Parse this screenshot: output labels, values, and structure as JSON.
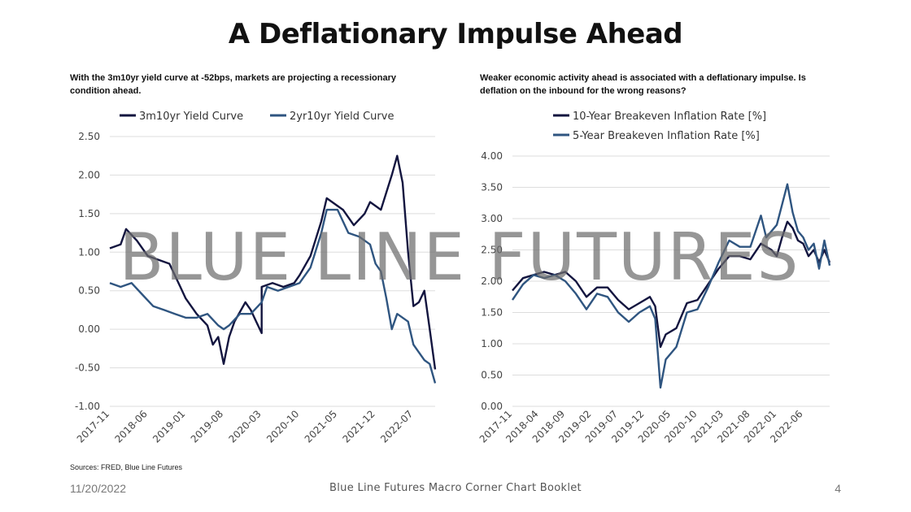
{
  "page": {
    "title": "A Deflationary Impulse Ahead",
    "footer_date": "11/20/2022",
    "footer_center": "Blue Line Futures Macro Corner Chart Booklet",
    "page_number": "4",
    "watermark": "BLUE LINE FUTURES",
    "sources": "Sources: FRED, Blue Line Futures"
  },
  "colors": {
    "dark_navy": "#13153f",
    "steel_blue": "#2f5580",
    "grid": "#dddddd"
  },
  "chart_data": [
    {
      "type": "line",
      "subtitle": "With the 3m10yr yield curve at -52bps, markets are projecting a recessionary condition ahead.",
      "ylim": [
        -1.0,
        2.5
      ],
      "yticks": [
        "2.50",
        "2.00",
        "1.50",
        "1.00",
        "0.50",
        "0.00",
        "-0.50",
        "-1.00"
      ],
      "ytick_values": [
        2.5,
        2.0,
        1.5,
        1.0,
        0.5,
        0.0,
        -0.5,
        -1.0
      ],
      "x_start": "2017-11",
      "x_end": "2022-11",
      "xticks": [
        "2017-11",
        "2018-06",
        "2019-01",
        "2019-08",
        "2020-03",
        "2020-10",
        "2021-05",
        "2021-12",
        "2022-07"
      ],
      "legend": "top",
      "grid": true,
      "series": [
        {
          "name": "3m10yr Yield Curve",
          "color": "#13153f",
          "x": [
            "2017-11",
            "2018-01",
            "2018-02",
            "2018-04",
            "2018-06",
            "2018-08",
            "2018-10",
            "2018-12",
            "2019-01",
            "2019-03",
            "2019-05",
            "2019-06",
            "2019-07",
            "2019-08",
            "2019-09",
            "2019-10",
            "2019-12",
            "2020-01",
            "2020-02",
            "2020-03",
            "2020-03",
            "2020-05",
            "2020-07",
            "2020-09",
            "2020-10",
            "2020-12",
            "2021-02",
            "2021-03",
            "2021-05",
            "2021-06",
            "2021-08",
            "2021-10",
            "2021-11",
            "2021-12",
            "2022-01",
            "2022-03",
            "2022-04",
            "2022-05",
            "2022-06",
            "2022-07",
            "2022-08",
            "2022-09",
            "2022-10",
            "2022-11"
          ],
          "values": [
            1.05,
            1.1,
            1.3,
            1.15,
            0.95,
            0.9,
            0.85,
            0.55,
            0.4,
            0.2,
            0.05,
            -0.2,
            -0.1,
            -0.45,
            -0.1,
            0.1,
            0.35,
            0.25,
            0.1,
            -0.05,
            0.55,
            0.6,
            0.55,
            0.6,
            0.7,
            0.95,
            1.4,
            1.7,
            1.6,
            1.55,
            1.35,
            1.5,
            1.65,
            1.6,
            1.55,
            2.0,
            2.25,
            1.9,
            1.0,
            0.3,
            0.35,
            0.5,
            0.0,
            -0.52
          ]
        },
        {
          "name": "2yr10yr Yield Curve",
          "color": "#2f5580",
          "x": [
            "2017-11",
            "2018-01",
            "2018-03",
            "2018-05",
            "2018-07",
            "2018-09",
            "2018-11",
            "2019-01",
            "2019-03",
            "2019-05",
            "2019-07",
            "2019-08",
            "2019-09",
            "2019-11",
            "2020-01",
            "2020-03",
            "2020-04",
            "2020-06",
            "2020-08",
            "2020-10",
            "2020-12",
            "2021-02",
            "2021-03",
            "2021-05",
            "2021-07",
            "2021-09",
            "2021-11",
            "2021-12",
            "2022-01",
            "2022-02",
            "2022-03",
            "2022-04",
            "2022-06",
            "2022-07",
            "2022-08",
            "2022-09",
            "2022-10",
            "2022-11"
          ],
          "values": [
            0.6,
            0.55,
            0.6,
            0.45,
            0.3,
            0.25,
            0.2,
            0.15,
            0.15,
            0.2,
            0.05,
            0.0,
            0.05,
            0.2,
            0.2,
            0.35,
            0.55,
            0.5,
            0.55,
            0.6,
            0.8,
            1.25,
            1.55,
            1.55,
            1.25,
            1.2,
            1.1,
            0.85,
            0.75,
            0.4,
            0.0,
            0.2,
            0.1,
            -0.2,
            -0.3,
            -0.4,
            -0.45,
            -0.7
          ]
        }
      ]
    },
    {
      "type": "line",
      "subtitle": "Weaker economic activity ahead is associated with a deflationary impulse. Is deflation on the inbound for the wrong reasons?",
      "ylim": [
        0.0,
        4.0
      ],
      "yticks": [
        "4.00",
        "3.50",
        "3.00",
        "2.50",
        "2.00",
        "1.50",
        "1.00",
        "0.50",
        "0.00"
      ],
      "ytick_values": [
        4.0,
        3.5,
        3.0,
        2.5,
        2.0,
        1.5,
        1.0,
        0.5,
        0.0
      ],
      "x_start": "2017-11",
      "x_end": "2022-11",
      "xticks": [
        "2017-11",
        "2018-04",
        "2018-09",
        "2019-02",
        "2019-07",
        "2019-12",
        "2020-05",
        "2020-10",
        "2021-03",
        "2021-08",
        "2022-01",
        "2022-06"
      ],
      "legend": "top",
      "grid": true,
      "series": [
        {
          "name": "10-Year Breakeven Inflation Rate [%]",
          "color": "#13153f",
          "x": [
            "2017-11",
            "2018-01",
            "2018-03",
            "2018-05",
            "2018-07",
            "2018-09",
            "2018-11",
            "2019-01",
            "2019-03",
            "2019-05",
            "2019-07",
            "2019-09",
            "2019-11",
            "2020-01",
            "2020-02",
            "2020-03",
            "2020-04",
            "2020-06",
            "2020-08",
            "2020-10",
            "2020-12",
            "2021-02",
            "2021-04",
            "2021-06",
            "2021-08",
            "2021-10",
            "2021-12",
            "2022-01",
            "2022-02",
            "2022-03",
            "2022-04",
            "2022-05",
            "2022-06",
            "2022-07",
            "2022-08",
            "2022-09",
            "2022-10",
            "2022-11"
          ],
          "values": [
            1.85,
            2.05,
            2.1,
            2.15,
            2.1,
            2.15,
            2.0,
            1.75,
            1.9,
            1.9,
            1.7,
            1.55,
            1.65,
            1.75,
            1.6,
            0.95,
            1.15,
            1.25,
            1.65,
            1.7,
            1.95,
            2.2,
            2.4,
            2.4,
            2.35,
            2.6,
            2.5,
            2.4,
            2.7,
            2.95,
            2.85,
            2.65,
            2.6,
            2.4,
            2.5,
            2.3,
            2.5,
            2.3
          ]
        },
        {
          "name": "5-Year Breakeven Inflation Rate [%]",
          "color": "#2f5580",
          "x": [
            "2017-11",
            "2018-01",
            "2018-03",
            "2018-05",
            "2018-07",
            "2018-09",
            "2018-11",
            "2019-01",
            "2019-03",
            "2019-05",
            "2019-07",
            "2019-09",
            "2019-11",
            "2020-01",
            "2020-02",
            "2020-03",
            "2020-04",
            "2020-06",
            "2020-08",
            "2020-10",
            "2020-12",
            "2021-02",
            "2021-04",
            "2021-06",
            "2021-08",
            "2021-10",
            "2021-11",
            "2022-01",
            "2022-03",
            "2022-04",
            "2022-05",
            "2022-06",
            "2022-07",
            "2022-08",
            "2022-09",
            "2022-10",
            "2022-11"
          ],
          "values": [
            1.7,
            1.95,
            2.1,
            2.05,
            2.1,
            2.0,
            1.8,
            1.55,
            1.8,
            1.75,
            1.5,
            1.35,
            1.5,
            1.6,
            1.4,
            0.3,
            0.75,
            0.95,
            1.5,
            1.55,
            1.9,
            2.3,
            2.65,
            2.55,
            2.55,
            3.05,
            2.7,
            2.9,
            3.55,
            3.1,
            2.8,
            2.7,
            2.5,
            2.6,
            2.2,
            2.65,
            2.25
          ]
        }
      ]
    }
  ]
}
